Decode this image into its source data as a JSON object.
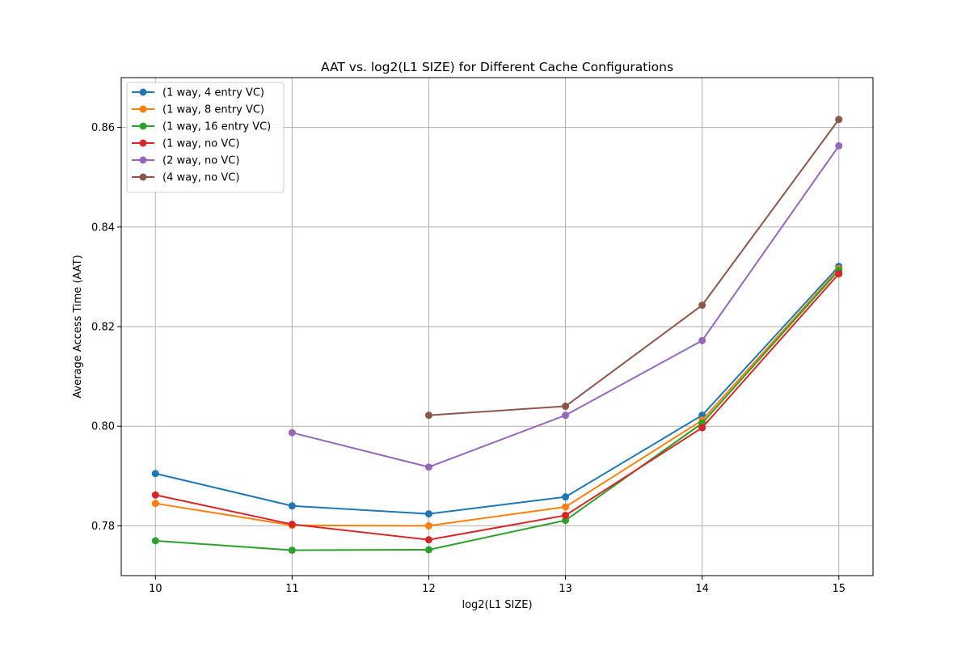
{
  "chart_data": {
    "type": "line",
    "title": "AAT vs. log2(L1 SIZE) for Different Cache Configurations",
    "xlabel": "log2(L1 SIZE)",
    "ylabel": "Average Access Time (AAT)",
    "xlim": [
      9.75,
      15.25
    ],
    "ylim": [
      0.77,
      0.87
    ],
    "xticks": [
      10,
      11,
      12,
      13,
      14,
      15
    ],
    "yticks": [
      0.78,
      0.8,
      0.82,
      0.84,
      0.86
    ],
    "ytick_labels": [
      "0.78",
      "0.80",
      "0.82",
      "0.84",
      "0.86"
    ],
    "grid": true,
    "legend_position": "top-left",
    "marker": "circle",
    "series": [
      {
        "name": "(1 way, 4 entry VC)",
        "color": "#1f77b4",
        "x": [
          10,
          11,
          12,
          13,
          14,
          15
        ],
        "y": [
          0.7905,
          0.784,
          0.7824,
          0.7858,
          0.8022,
          0.8321
        ]
      },
      {
        "name": "(1 way, 8 entry VC)",
        "color": "#ff7f0e",
        "x": [
          10,
          11,
          12,
          13,
          14,
          15
        ],
        "y": [
          0.7845,
          0.7801,
          0.78,
          0.7838,
          0.8012,
          0.8316
        ]
      },
      {
        "name": "(1 way, 16 entry VC)",
        "color": "#2ca02c",
        "x": [
          10,
          11,
          12,
          13,
          14,
          15
        ],
        "y": [
          0.777,
          0.7751,
          0.7752,
          0.7811,
          0.8006,
          0.8313
        ]
      },
      {
        "name": "(1 way, no VC)",
        "color": "#d62728",
        "x": [
          10,
          11,
          12,
          13,
          14,
          15
        ],
        "y": [
          0.7862,
          0.7803,
          0.7772,
          0.7821,
          0.7997,
          0.8306
        ]
      },
      {
        "name": "(2 way, no VC)",
        "color": "#9467bd",
        "x": [
          11,
          12,
          13,
          14,
          15
        ],
        "y": [
          0.7987,
          0.7918,
          0.8022,
          0.8172,
          0.8563
        ]
      },
      {
        "name": "(4 way, no VC)",
        "color": "#8c564b",
        "x": [
          12,
          13,
          14,
          15
        ],
        "y": [
          0.8022,
          0.804,
          0.8243,
          0.8616
        ]
      }
    ]
  }
}
